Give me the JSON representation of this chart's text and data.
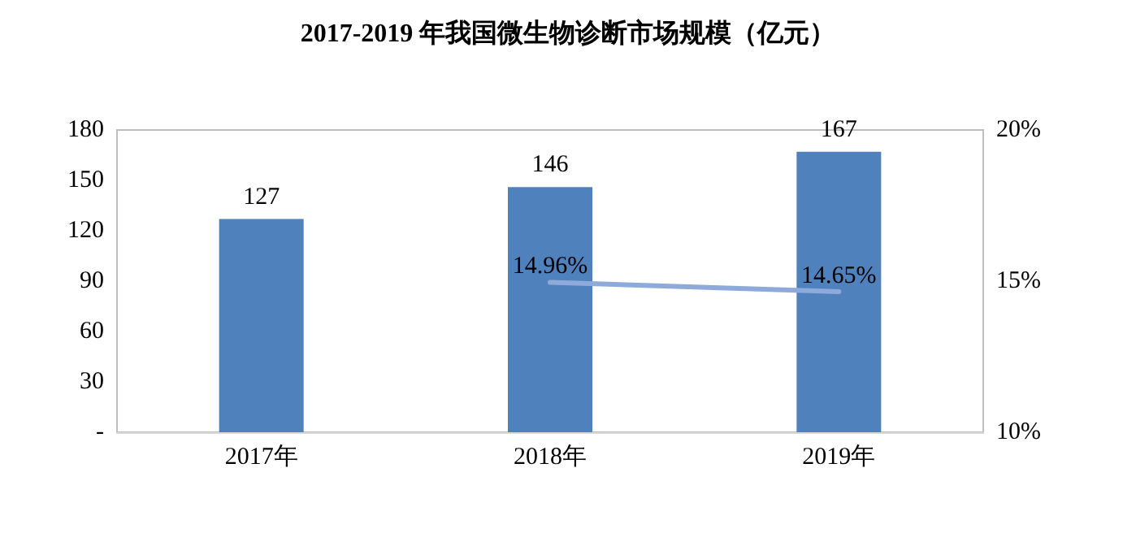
{
  "chart_data": {
    "type": "bar",
    "title": "2017-2019 年我国微生物诊断市场规模（亿元）",
    "categories": [
      "2017年",
      "2018年",
      "2019年"
    ],
    "series": [
      {
        "color": "#4f81bd",
        "values": [
          127,
          146,
          167
        ],
        "value_labels": [
          "127",
          "146",
          "167"
        ]
      },
      {
        "type": "line",
        "axis": "y2",
        "color": "#8eaadb",
        "values": [
          null,
          14.96,
          14.65
        ],
        "value_labels": [
          null,
          "14.96%",
          "14.65%"
        ],
        "marker": "none"
      }
    ],
    "ylim": [
      0,
      180
    ],
    "yticks": [
      {
        "value": 0,
        "label": "-"
      },
      30,
      60,
      90,
      120,
      150,
      180
    ],
    "y2lim": [
      10,
      20
    ],
    "y2ticks": [
      {
        "value": 10,
        "label": "10%"
      },
      {
        "value": 15,
        "label": "15%"
      },
      {
        "value": 20,
        "label": "20%"
      }
    ],
    "grid": false
  }
}
